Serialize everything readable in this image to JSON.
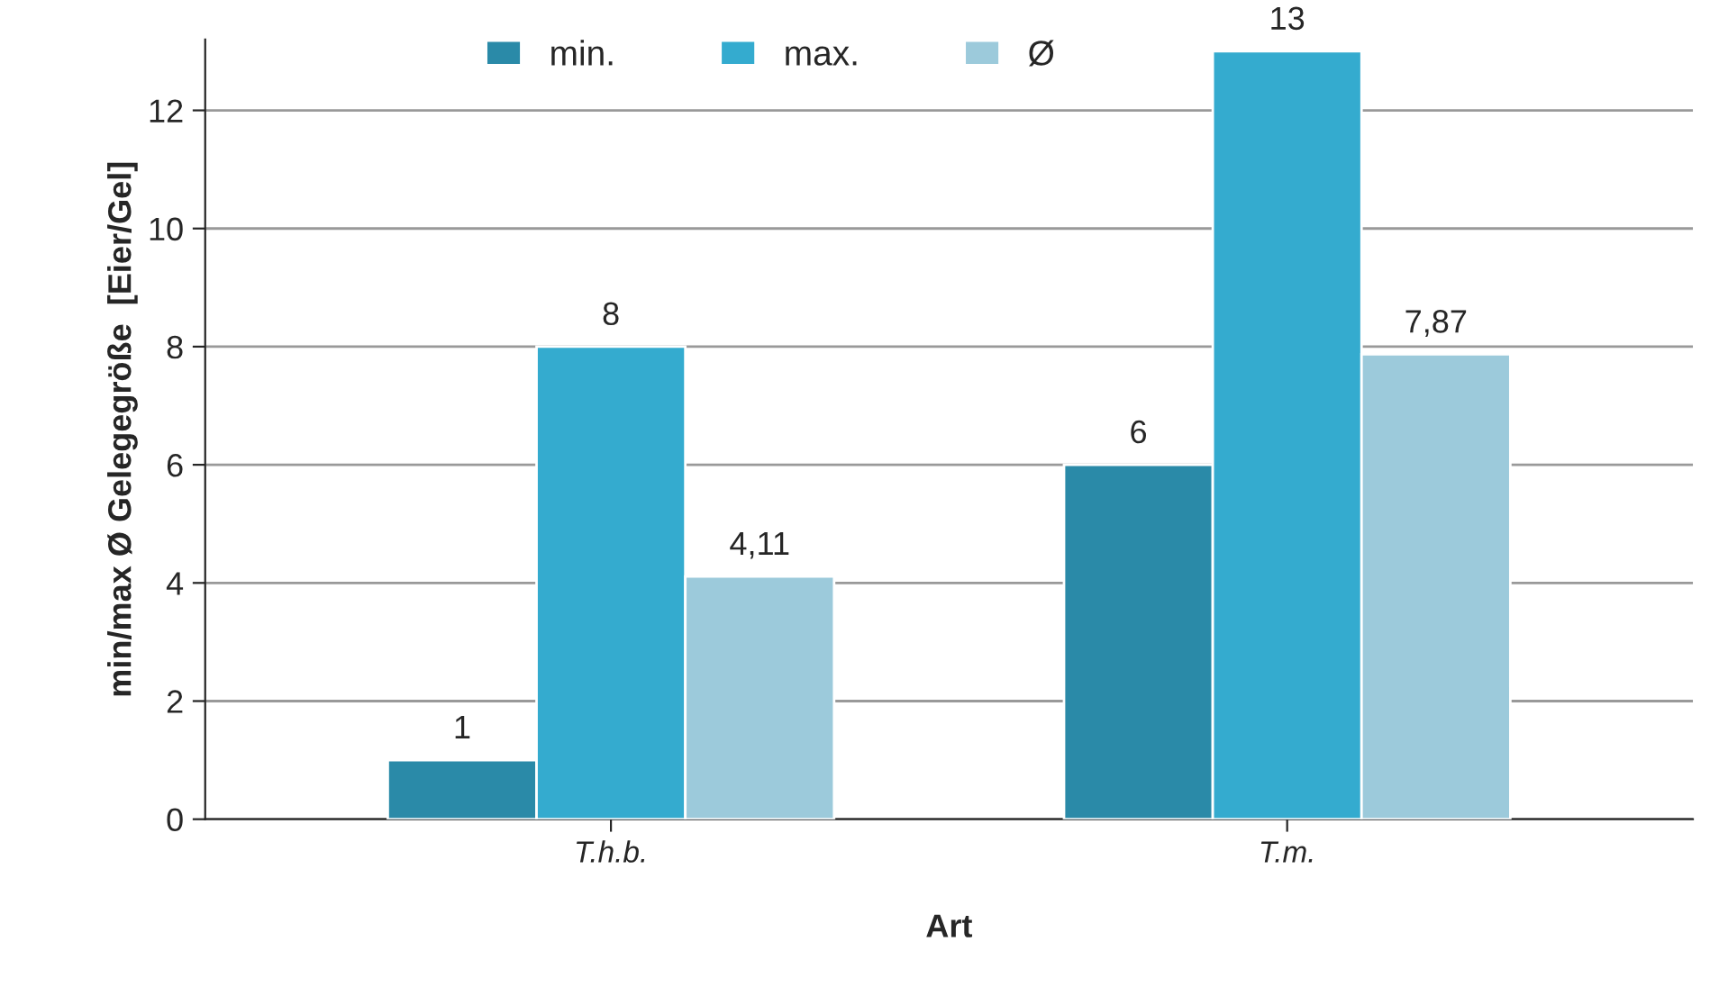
{
  "chart_data": {
    "type": "bar",
    "xlabel": "Art",
    "ylabel": "min/max Ø Gelegegröße  [Eier/Gel]",
    "categories": [
      "T.h.b.",
      "T.m."
    ],
    "series": [
      {
        "name": "min.",
        "color": "#2a8aa8",
        "values": [
          1,
          6
        ],
        "value_labels": [
          "1",
          "6"
        ]
      },
      {
        "name": "max.",
        "color": "#34abcf",
        "values": [
          8,
          13
        ],
        "value_labels": [
          "8",
          "13"
        ]
      },
      {
        "name": "Ø",
        "color": "#9ccadb",
        "values": [
          4.11,
          7.87
        ],
        "value_labels": [
          "4,11",
          "7,87"
        ]
      }
    ],
    "ylim": [
      0,
      13.2
    ],
    "yticks": [
      0,
      2,
      4,
      6,
      8,
      10,
      12
    ],
    "grid": "y",
    "legend": "top"
  }
}
